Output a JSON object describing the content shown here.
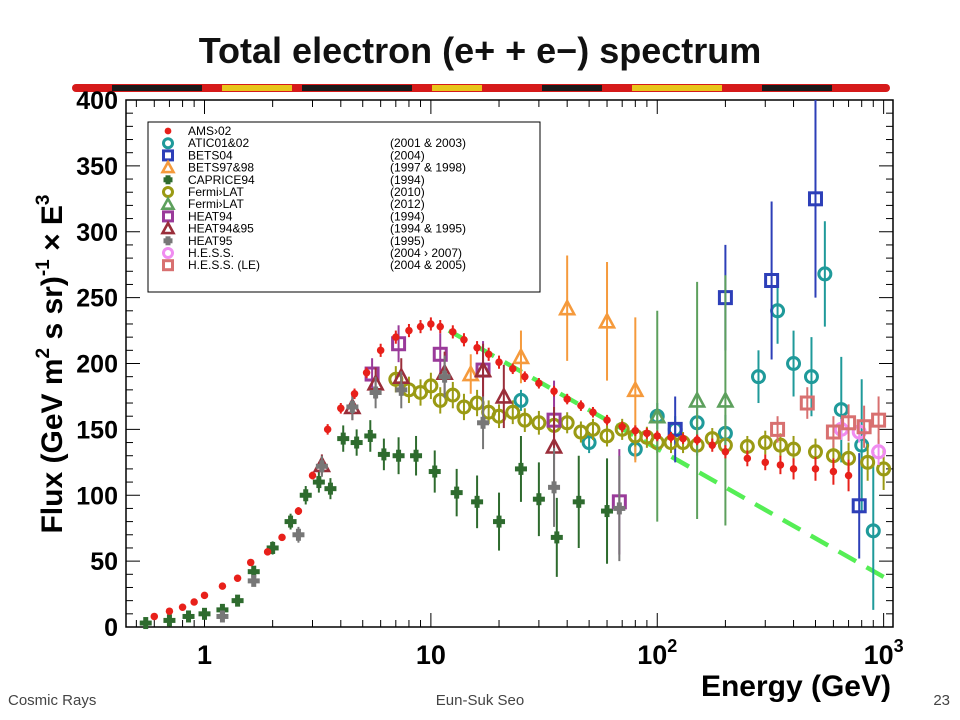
{
  "slide": {
    "title": "Total electron (e+ + e−) spectrum",
    "footer_left": "Cosmic Rays",
    "footer_center": "Eun-Suk Seo",
    "page_number": "23"
  },
  "chart_data": {
    "type": "scatter",
    "xlabel": "Energy (GeV)",
    "ylabel_lines": [
      "Flux (GeV m",
      "2",
      " s sr)",
      "-1",
      " × E",
      "3"
    ],
    "xscale": "log",
    "xlim": [
      0.45,
      1100
    ],
    "ylim": [
      0,
      400
    ],
    "x_ticks": [
      {
        "value": 1,
        "label": "1"
      },
      {
        "value": 10,
        "label": "10"
      },
      {
        "value": 100,
        "label": "10",
        "sup": "2"
      },
      {
        "value": 1000,
        "label": "10",
        "sup": "3"
      }
    ],
    "y_ticks": [
      0,
      50,
      100,
      150,
      200,
      250,
      300,
      350,
      400
    ],
    "legend": {
      "placement": "top-left",
      "entries": [
        {
          "label": "AMS›02",
          "year": "",
          "color": "#e8201a",
          "marker": "dot"
        },
        {
          "label": "ATIC01&02",
          "year": "(2001 & 2003)",
          "color": "#1f9a9a",
          "marker": "circle"
        },
        {
          "label": "BETS04",
          "year": "(2004)",
          "color": "#2d3fb8",
          "marker": "square"
        },
        {
          "label": "BETS97&98",
          "year": "(1997 & 1998)",
          "color": "#f59a3c",
          "marker": "triangle"
        },
        {
          "label": "CAPRICE94",
          "year": "(1994)",
          "color": "#2e6b2e",
          "marker": "cross"
        },
        {
          "label": "Fermi›LAT",
          "year": "(2010)",
          "color": "#9a9a14",
          "marker": "circle"
        },
        {
          "label": "Fermi›LAT",
          "year": "(2012)",
          "color": "#5da05d",
          "marker": "triangle"
        },
        {
          "label": "HEAT94",
          "year": "(1994)",
          "color": "#9a3a9a",
          "marker": "square"
        },
        {
          "label": "HEAT94&95",
          "year": "(1994 & 1995)",
          "color": "#9a2e3a",
          "marker": "triangle"
        },
        {
          "label": "HEAT95",
          "year": "(1995)",
          "color": "#777777",
          "marker": "cross"
        },
        {
          "label": "H.E.S.S.",
          "year": "(2004 › 2007)",
          "color": "#f08cf0",
          "marker": "circle"
        },
        {
          "label": "H.E.S.S. (LE)",
          "year": "(2004 & 2005)",
          "color": "#d87070",
          "marker": "square"
        }
      ]
    },
    "series": [
      {
        "name": "AMS›02",
        "color": "#e8201a",
        "marker": "dot",
        "x": [
          0.6,
          0.7,
          0.8,
          0.9,
          1.0,
          1.2,
          1.4,
          1.6,
          1.9,
          2.2,
          2.6,
          3.0,
          3.5,
          4.0,
          4.6,
          5.2,
          6.0,
          7.0,
          8.0,
          9.0,
          10,
          11,
          12.5,
          14,
          16,
          18,
          20,
          23,
          26,
          30,
          35,
          40,
          46,
          52,
          60,
          70,
          80,
          90,
          100,
          115,
          130,
          150,
          175,
          200,
          250,
          300,
          350,
          400,
          500,
          600,
          700
        ],
        "y": [
          8,
          12,
          15,
          19,
          24,
          31,
          37,
          49,
          57,
          68,
          88,
          115,
          150,
          166,
          177,
          193,
          210,
          220,
          225,
          228,
          230,
          228,
          224,
          218,
          212,
          207,
          201,
          196,
          190,
          185,
          179,
          173,
          168,
          163,
          157,
          152,
          149,
          147,
          145,
          144,
          143,
          142,
          138,
          133,
          128,
          125,
          123,
          120,
          120,
          118,
          115
        ],
        "err": [
          1,
          1,
          1,
          1,
          1,
          1,
          2,
          2,
          2,
          2,
          3,
          3,
          4,
          4,
          4,
          4,
          5,
          5,
          5,
          5,
          5,
          5,
          5,
          5,
          5,
          5,
          5,
          4,
          4,
          4,
          4,
          4,
          4,
          4,
          4,
          4,
          4,
          4,
          4,
          4,
          4,
          4,
          5,
          5,
          6,
          6,
          7,
          8,
          9,
          10,
          12
        ]
      },
      {
        "name": "ATIC01&02",
        "color": "#1f9a9a",
        "marker": "circle",
        "x": [
          25,
          50,
          80,
          100,
          120,
          150,
          200,
          280,
          340,
          400,
          480,
          550,
          650,
          800,
          900
        ],
        "y": [
          172,
          140,
          135,
          160,
          150,
          155,
          147,
          190,
          240,
          200,
          190,
          268,
          165,
          138,
          73
        ],
        "err": [
          8,
          8,
          8,
          10,
          10,
          12,
          14,
          20,
          25,
          25,
          30,
          40,
          40,
          50,
          60
        ]
      },
      {
        "name": "BETS04",
        "color": "#2d3fb8",
        "marker": "square",
        "x": [
          120,
          200,
          320,
          500,
          780
        ],
        "y": [
          150,
          250,
          263,
          325,
          92
        ],
        "err": [
          25,
          40,
          60,
          75,
          40
        ]
      },
      {
        "name": "BETS97&98",
        "color": "#f59a3c",
        "marker": "triangle",
        "x": [
          15,
          25,
          40,
          60,
          80
        ],
        "y": [
          192,
          205,
          242,
          232,
          180
        ],
        "err": [
          15,
          20,
          40,
          45,
          55
        ]
      },
      {
        "name": "CAPRICE94",
        "color": "#2e6b2e",
        "marker": "cross",
        "x": [
          0.55,
          0.7,
          0.85,
          1.0,
          1.2,
          1.4,
          1.65,
          2.0,
          2.4,
          2.8,
          3.2,
          3.6,
          4.1,
          4.7,
          5.4,
          6.2,
          7.2,
          8.6,
          10.4,
          13,
          16,
          20,
          25,
          30,
          36,
          45,
          60
        ],
        "y": [
          3,
          5,
          8,
          10,
          13,
          20,
          42,
          60,
          80,
          100,
          110,
          105,
          143,
          140,
          145,
          131,
          130,
          130,
          118,
          102,
          95,
          80,
          120,
          97,
          68,
          95,
          88
        ],
        "err": [
          1,
          1,
          2,
          2,
          2,
          3,
          4,
          5,
          6,
          7,
          8,
          8,
          10,
          10,
          12,
          12,
          14,
          15,
          16,
          18,
          20,
          22,
          25,
          28,
          30,
          35,
          40
        ]
      },
      {
        "name": "Fermi›LAT (2010)",
        "color": "#9a9a14",
        "marker": "circle",
        "x": [
          7,
          8,
          9,
          10,
          11,
          12.5,
          14,
          16,
          18,
          20,
          23,
          26,
          30,
          35,
          40,
          46,
          52,
          60,
          70,
          80,
          90,
          100,
          115,
          130,
          150,
          175,
          200,
          250,
          300,
          350,
          400,
          500,
          600,
          700,
          850,
          1000
        ],
        "y": [
          188,
          180,
          178,
          183,
          172,
          176,
          167,
          170,
          163,
          160,
          163,
          157,
          155,
          153,
          155,
          148,
          150,
          145,
          150,
          145,
          144,
          140,
          140,
          140,
          138,
          143,
          138,
          137,
          140,
          138,
          135,
          133,
          130,
          128,
          125,
          120
        ],
        "err": [
          10,
          10,
          10,
          10,
          10,
          10,
          10,
          10,
          9,
          9,
          9,
          9,
          9,
          8,
          8,
          8,
          8,
          8,
          8,
          8,
          8,
          8,
          8,
          8,
          8,
          8,
          8,
          8,
          9,
          9,
          10,
          10,
          12,
          12,
          14,
          16
        ]
      },
      {
        "name": "Fermi›LAT (2012)",
        "color": "#5da05d",
        "marker": "triangle",
        "x": [
          100,
          150,
          200
        ],
        "y": [
          160,
          172,
          172
        ],
        "err": [
          80,
          90,
          95
        ]
      },
      {
        "name": "HEAT94",
        "color": "#9a3a9a",
        "marker": "square",
        "x": [
          5.5,
          7.2,
          11,
          17,
          35,
          68
        ],
        "y": [
          192,
          215,
          207,
          195,
          157,
          95
        ],
        "err": [
          12,
          14,
          16,
          22,
          30,
          40
        ]
      },
      {
        "name": "HEAT94&95",
        "color": "#9a2e3a",
        "marker": "triangle",
        "x": [
          3.3,
          4.5,
          5.7,
          7.4,
          11.5,
          17,
          21,
          35
        ],
        "y": [
          123,
          167,
          185,
          190,
          193,
          195,
          175,
          137
        ],
        "err": [
          8,
          10,
          12,
          14,
          16,
          20,
          24,
          30
        ]
      },
      {
        "name": "HEAT95",
        "color": "#777777",
        "marker": "cross",
        "x": [
          1.2,
          1.65,
          2.6,
          3.3,
          4.5,
          5.7,
          7.4,
          11.5,
          17,
          35,
          68
        ],
        "y": [
          8,
          35,
          70,
          122,
          167,
          178,
          180,
          190,
          155,
          106,
          90
        ],
        "err": [
          2,
          4,
          6,
          8,
          10,
          12,
          14,
          16,
          20,
          30,
          40
        ]
      },
      {
        "name": "H.E.S.S.",
        "color": "#f08cf0",
        "marker": "circle",
        "x": [
          650,
          780,
          950
        ],
        "y": [
          150,
          148,
          133
        ],
        "err": [
          8,
          8,
          10
        ]
      },
      {
        "name": "H.E.S.S. (LE)",
        "color": "#d87070",
        "marker": "square",
        "x": [
          340,
          460,
          600,
          700,
          820,
          950
        ],
        "y": [
          150,
          170,
          148,
          155,
          152,
          157
        ],
        "err": [
          10,
          12,
          12,
          14,
          16,
          18
        ]
      }
    ],
    "fit_line": {
      "style": "dashed",
      "color": "#55ee55",
      "x": [
        12,
        1000
      ],
      "y": [
        225,
        38
      ]
    }
  }
}
